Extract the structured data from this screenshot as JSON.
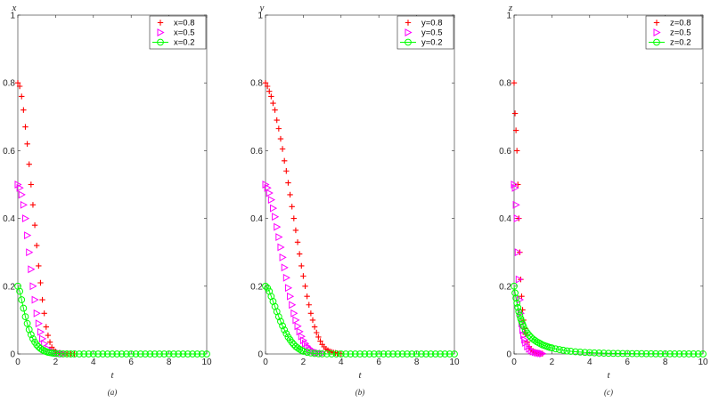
{
  "colors": {
    "x08": "#ff0000",
    "x05": "#ff00ff",
    "x02": "#00ff00",
    "axis": "#262626"
  },
  "chart_data": [
    {
      "type": "scatter",
      "caption": "(a)",
      "xlabel": "t",
      "ylabel": "x",
      "xlim": [
        0,
        10
      ],
      "ylim": [
        0,
        1
      ],
      "xticks": [
        "0",
        "2",
        "4",
        "6",
        "8",
        "10"
      ],
      "yticks": [
        "0",
        "0.2",
        "0.4",
        "0.6",
        "0.8",
        "1"
      ],
      "legend_position": "top-right",
      "series": [
        {
          "name": "x=0.8",
          "marker": "plus",
          "color": "#ff0000",
          "x": [
            0,
            0.1,
            0.2,
            0.3,
            0.4,
            0.5,
            0.6,
            0.7,
            0.8,
            0.9,
            1.0,
            1.1,
            1.2,
            1.3,
            1.4,
            1.5,
            1.6,
            1.7,
            1.8,
            1.9,
            2.0,
            2.2,
            2.4,
            2.6,
            2.8,
            3.0
          ],
          "y": [
            0.8,
            0.79,
            0.76,
            0.72,
            0.67,
            0.62,
            0.56,
            0.5,
            0.44,
            0.38,
            0.32,
            0.26,
            0.21,
            0.16,
            0.12,
            0.08,
            0.055,
            0.035,
            0.02,
            0.012,
            0.007,
            0.003,
            0.0015,
            0.0008,
            0.0004,
            0.0002
          ]
        },
        {
          "name": "x=0.5",
          "marker": "triangle-right",
          "color": "#ff00ff",
          "x": [
            0,
            0.1,
            0.2,
            0.3,
            0.4,
            0.5,
            0.6,
            0.7,
            0.8,
            0.9,
            1.0,
            1.1,
            1.2,
            1.3,
            1.4,
            1.6,
            1.8,
            2.0,
            2.2,
            2.4
          ],
          "y": [
            0.5,
            0.49,
            0.47,
            0.44,
            0.4,
            0.35,
            0.3,
            0.25,
            0.2,
            0.16,
            0.12,
            0.09,
            0.065,
            0.045,
            0.03,
            0.015,
            0.007,
            0.003,
            0.0015,
            0.0006
          ]
        },
        {
          "name": "x=0.2",
          "marker": "circle",
          "color": "#00ff00",
          "x": [
            0,
            0.1,
            0.2,
            0.3,
            0.4,
            0.5,
            0.6,
            0.7,
            0.8,
            0.9,
            1.0,
            1.1,
            1.2,
            1.3,
            1.4,
            1.5,
            1.6,
            1.7,
            1.8,
            1.9,
            2.0,
            2.2,
            2.4,
            2.6,
            2.8,
            3.0,
            3.25,
            3.5,
            3.75,
            4.0,
            4.25,
            4.5,
            4.75,
            5.0,
            5.25,
            5.5,
            5.75,
            6.0,
            6.25,
            6.5,
            6.75,
            7.0,
            7.25,
            7.5,
            7.75,
            8.0,
            8.25,
            8.5,
            8.75,
            9.0,
            9.25,
            9.5,
            9.75,
            10.0
          ],
          "y": [
            0.2,
            0.185,
            0.16,
            0.135,
            0.11,
            0.09,
            0.072,
            0.057,
            0.045,
            0.035,
            0.027,
            0.021,
            0.016,
            0.012,
            0.009,
            0.007,
            0.005,
            0.004,
            0.003,
            0.002,
            0.0015,
            0.0008,
            0.0004,
            0.0002,
            0.0001,
            0.0001,
            0,
            0,
            0,
            0,
            0,
            0,
            0,
            0,
            0,
            0,
            0,
            0,
            0,
            0,
            0,
            0,
            0,
            0,
            0,
            0,
            0,
            0,
            0,
            0,
            0,
            0,
            0,
            0
          ]
        }
      ]
    },
    {
      "type": "scatter",
      "caption": "(b)",
      "xlabel": "t",
      "ylabel": "y",
      "xlim": [
        0,
        10
      ],
      "ylim": [
        0,
        1
      ],
      "xticks": [
        "0",
        "2",
        "4",
        "6",
        "8",
        "10"
      ],
      "yticks": [
        "0",
        "0.2",
        "0.4",
        "0.6",
        "0.8",
        "1"
      ],
      "legend_position": "top-right",
      "series": [
        {
          "name": "y=0.8",
          "marker": "plus",
          "color": "#ff0000",
          "x": [
            0,
            0.1,
            0.2,
            0.3,
            0.4,
            0.5,
            0.6,
            0.7,
            0.8,
            0.9,
            1.0,
            1.1,
            1.2,
            1.3,
            1.4,
            1.5,
            1.6,
            1.7,
            1.8,
            1.9,
            2.0,
            2.1,
            2.2,
            2.3,
            2.4,
            2.5,
            2.6,
            2.7,
            2.8,
            2.9,
            3.0,
            3.1,
            3.2,
            3.3,
            3.4,
            3.5,
            3.6,
            3.7,
            3.8,
            3.9,
            4.0
          ],
          "y": [
            0.8,
            0.79,
            0.775,
            0.76,
            0.74,
            0.72,
            0.69,
            0.665,
            0.635,
            0.605,
            0.57,
            0.54,
            0.505,
            0.47,
            0.435,
            0.4,
            0.365,
            0.33,
            0.295,
            0.26,
            0.23,
            0.2,
            0.17,
            0.145,
            0.12,
            0.1,
            0.08,
            0.063,
            0.05,
            0.038,
            0.028,
            0.021,
            0.015,
            0.011,
            0.008,
            0.006,
            0.004,
            0.003,
            0.002,
            0.0015,
            0.001
          ]
        },
        {
          "name": "y=0.5",
          "marker": "triangle-right",
          "color": "#ff00ff",
          "x": [
            0,
            0.1,
            0.2,
            0.3,
            0.4,
            0.5,
            0.6,
            0.7,
            0.8,
            0.9,
            1.0,
            1.1,
            1.2,
            1.3,
            1.4,
            1.5,
            1.6,
            1.7,
            1.8,
            1.9,
            2.0,
            2.1,
            2.2,
            2.3,
            2.4,
            2.5,
            2.6,
            2.7,
            2.8,
            3.0
          ],
          "y": [
            0.5,
            0.49,
            0.475,
            0.455,
            0.43,
            0.405,
            0.375,
            0.345,
            0.315,
            0.285,
            0.255,
            0.225,
            0.195,
            0.17,
            0.145,
            0.12,
            0.1,
            0.082,
            0.066,
            0.052,
            0.04,
            0.031,
            0.023,
            0.017,
            0.012,
            0.009,
            0.006,
            0.004,
            0.003,
            0.0015
          ]
        },
        {
          "name": "y=0.2",
          "marker": "circle",
          "color": "#00ff00",
          "x": [
            0,
            0.1,
            0.2,
            0.3,
            0.4,
            0.5,
            0.6,
            0.7,
            0.8,
            0.9,
            1.0,
            1.1,
            1.2,
            1.3,
            1.4,
            1.5,
            1.6,
            1.7,
            1.8,
            1.9,
            2.0,
            2.2,
            2.4,
            2.6,
            2.8,
            3.0,
            3.25,
            3.5,
            3.75,
            4.0,
            4.25,
            4.5,
            4.75,
            5.0,
            5.25,
            5.5,
            5.75,
            6.0,
            6.25,
            6.5,
            6.75,
            7.0,
            7.25,
            7.5,
            7.75,
            8.0,
            8.25,
            8.5,
            8.75,
            9.0,
            9.25,
            9.5,
            9.75,
            10.0
          ],
          "y": [
            0.2,
            0.195,
            0.185,
            0.17,
            0.155,
            0.14,
            0.125,
            0.11,
            0.096,
            0.083,
            0.071,
            0.06,
            0.05,
            0.042,
            0.034,
            0.028,
            0.022,
            0.018,
            0.014,
            0.011,
            0.008,
            0.005,
            0.003,
            0.0015,
            0.0008,
            0.0004,
            0.0002,
            0.0001,
            0,
            0,
            0,
            0,
            0,
            0,
            0,
            0,
            0,
            0,
            0,
            0,
            0,
            0,
            0,
            0,
            0,
            0,
            0,
            0,
            0,
            0,
            0,
            0,
            0,
            0
          ]
        }
      ]
    },
    {
      "type": "scatter",
      "caption": "(c)",
      "xlabel": "t",
      "ylabel": "z",
      "xlim": [
        0,
        10
      ],
      "ylim": [
        0,
        1
      ],
      "xticks": [
        "0",
        "2",
        "4",
        "6",
        "8",
        "10"
      ],
      "yticks": [
        "0",
        "0.2",
        "0.4",
        "0.6",
        "0.8",
        "1"
      ],
      "legend_position": "top-right",
      "series": [
        {
          "name": "z=0.8",
          "marker": "plus",
          "color": "#ff0000",
          "x": [
            0,
            0.05,
            0.1,
            0.15,
            0.2,
            0.25,
            0.3,
            0.35,
            0.4,
            0.45,
            0.5,
            0.55,
            0.6,
            0.7,
            0.8,
            0.9,
            1.0,
            1.1,
            1.2,
            1.3,
            1.4,
            1.5
          ],
          "y": [
            0.8,
            0.71,
            0.66,
            0.6,
            0.5,
            0.4,
            0.3,
            0.22,
            0.17,
            0.13,
            0.1,
            0.075,
            0.058,
            0.035,
            0.022,
            0.014,
            0.009,
            0.006,
            0.004,
            0.003,
            0.002,
            0.001
          ]
        },
        {
          "name": "z=0.5",
          "marker": "triangle-right",
          "color": "#ff00ff",
          "x": [
            0,
            0.05,
            0.1,
            0.15,
            0.2,
            0.25,
            0.3,
            0.35,
            0.4,
            0.45,
            0.5,
            0.55,
            0.6,
            0.7,
            0.8,
            0.9,
            1.0,
            1.1,
            1.2,
            1.3,
            1.4,
            1.5
          ],
          "y": [
            0.5,
            0.49,
            0.44,
            0.4,
            0.3,
            0.22,
            0.16,
            0.12,
            0.09,
            0.07,
            0.055,
            0.042,
            0.033,
            0.022,
            0.015,
            0.01,
            0.007,
            0.005,
            0.0035,
            0.0025,
            0.0018,
            0.001
          ]
        },
        {
          "name": "z=0.2",
          "marker": "circle",
          "color": "#00ff00",
          "x": [
            0,
            0.05,
            0.1,
            0.15,
            0.2,
            0.25,
            0.3,
            0.35,
            0.4,
            0.45,
            0.5,
            0.6,
            0.7,
            0.8,
            0.9,
            1.0,
            1.1,
            1.2,
            1.3,
            1.4,
            1.5,
            1.6,
            1.7,
            1.8,
            1.9,
            2.0,
            2.2,
            2.4,
            2.6,
            2.8,
            3.0,
            3.25,
            3.5,
            3.75,
            4.0,
            4.25,
            4.5,
            4.75,
            5.0,
            5.25,
            5.5,
            5.75,
            6.0,
            6.25,
            6.5,
            6.75,
            7.0,
            7.25,
            7.5,
            7.75,
            8.0,
            8.25,
            8.5,
            8.75,
            9.0,
            9.25,
            9.5,
            9.75,
            10.0
          ],
          "y": [
            0.2,
            0.18,
            0.165,
            0.15,
            0.137,
            0.125,
            0.114,
            0.104,
            0.096,
            0.088,
            0.081,
            0.07,
            0.062,
            0.055,
            0.049,
            0.044,
            0.04,
            0.036,
            0.033,
            0.03,
            0.027,
            0.025,
            0.023,
            0.021,
            0.019,
            0.018,
            0.015,
            0.013,
            0.011,
            0.009,
            0.008,
            0.0065,
            0.0055,
            0.0045,
            0.004,
            0.0033,
            0.0028,
            0.0024,
            0.002,
            0.0017,
            0.0015,
            0.0013,
            0.0011,
            0.001,
            0.0009,
            0.0008,
            0.0007,
            0.0006,
            0.0005,
            0.0004,
            0.0004,
            0.0003,
            0.0003,
            0.0002,
            0.0002,
            0.0002,
            0.0001,
            0.0001,
            0.0001
          ]
        }
      ]
    }
  ]
}
